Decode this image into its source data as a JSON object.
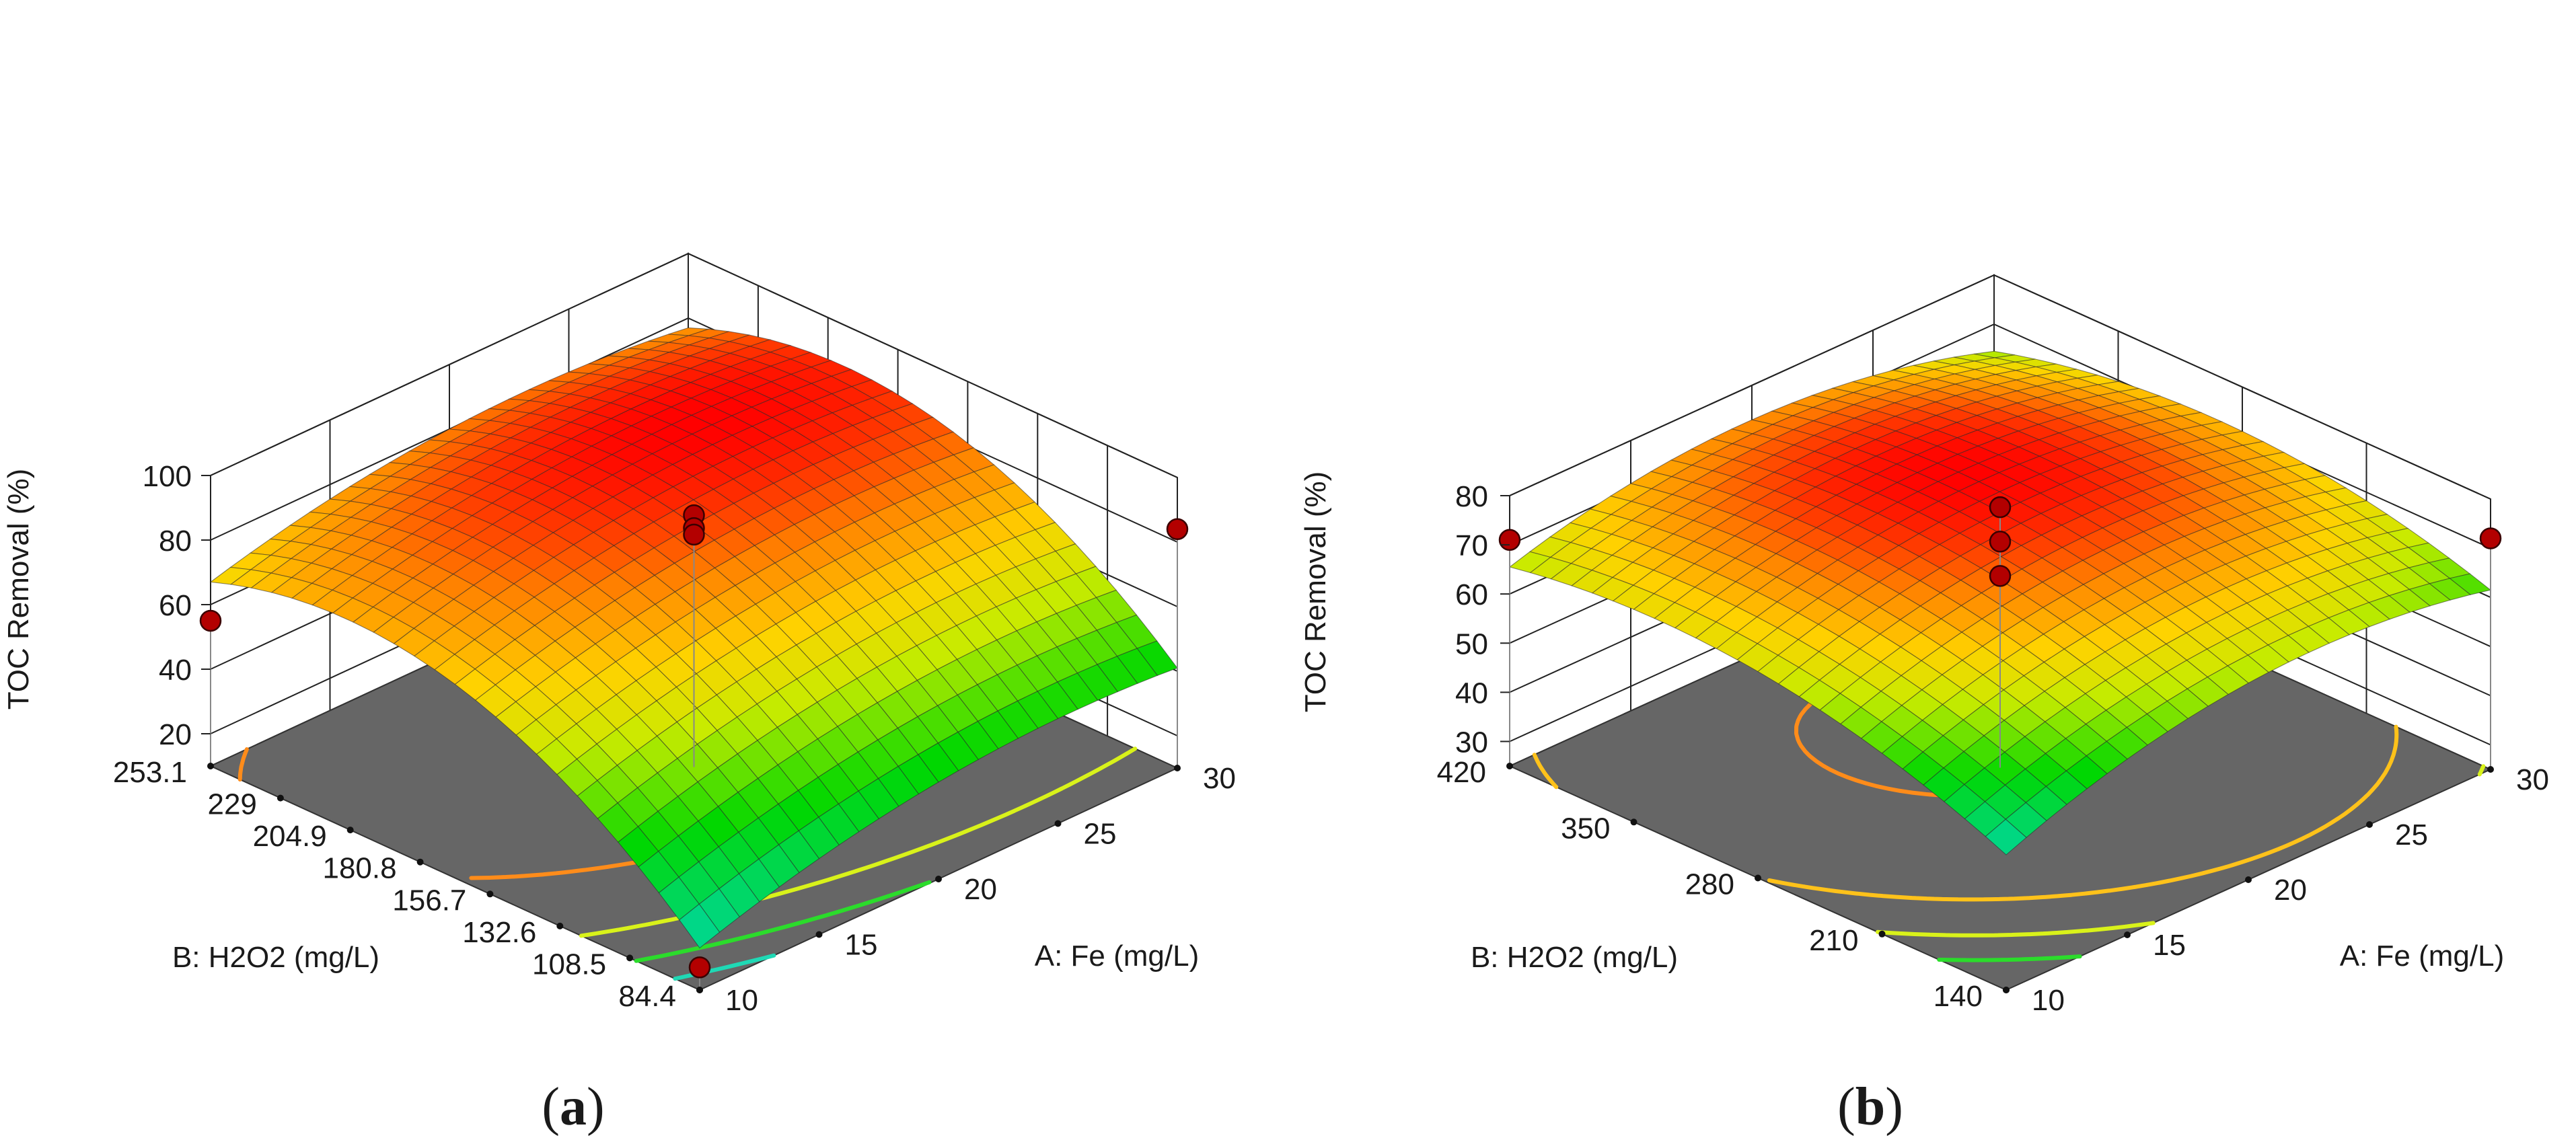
{
  "colors": {
    "floor": "#666666",
    "wall_line": "#222222",
    "point": "#b30000",
    "surface_low": "#00d7a8",
    "surface_mid": "#ffd200",
    "surface_high": "#ff0000",
    "contour_green": "#2bdc2b",
    "contour_yellow": "#d9f21a",
    "contour_orange": "#ff8c1a",
    "contour_gold": "#ffc21a",
    "contour_teal": "#1fd9b5"
  },
  "chart_data": [
    {
      "type": "surface",
      "caption_letter": "a",
      "title": "",
      "zlabel": "TOC Removal (%)",
      "xlabel": "A: Fe  (mg/L)",
      "ylabel": "B: H2O2  (mg/L)",
      "x_ticks": [
        "10",
        "15",
        "20",
        "25",
        "30"
      ],
      "x_tick_values": [
        10,
        15,
        20,
        25,
        30
      ],
      "y_ticks": [
        "84.4",
        "108.5",
        "132.6",
        "156.7",
        "180.8",
        "204.9",
        "229",
        "253.1"
      ],
      "y_tick_values": [
        84.4,
        108.5,
        132.6,
        156.7,
        180.8,
        204.9,
        229,
        253.1
      ],
      "z_ticks": [
        "20",
        "40",
        "60",
        "80",
        "100"
      ],
      "z_tick_values": [
        20,
        40,
        60,
        80,
        100
      ],
      "xlim": [
        10,
        30
      ],
      "ylim": [
        84.4,
        253.1
      ],
      "zlim": [
        10,
        100
      ],
      "grid_n": 24,
      "model": {
        "b0": 85,
        "bA": 7,
        "bB": 20,
        "bAB": -2,
        "bAA": -8,
        "bBB": -25
      },
      "contours": [
        {
          "level": 30,
          "color": "#1fd9b5"
        },
        {
          "level": 40,
          "color": "#2bdc2b"
        },
        {
          "level": 52,
          "color": "#d9f21a"
        },
        {
          "level": 70,
          "color": "#ff8c1a"
        }
      ],
      "design_points": [
        {
          "x": 10,
          "y": 84.4,
          "z": 17
        },
        {
          "x": 20,
          "y": 168.75,
          "z": 88
        },
        {
          "x": 20,
          "y": 168.75,
          "z": 84
        },
        {
          "x": 20,
          "y": 168.75,
          "z": 82
        },
        {
          "x": 10,
          "y": 253.1,
          "z": 55
        },
        {
          "x": 30,
          "y": 84.4,
          "z": 84
        }
      ]
    },
    {
      "type": "surface",
      "caption_letter": "b",
      "title": "",
      "zlabel": "TOC Removal (%)",
      "xlabel": "A: Fe (mg/L)",
      "ylabel": "B: H2O2 (mg/L)",
      "x_ticks": [
        "10",
        "15",
        "20",
        "25",
        "30"
      ],
      "x_tick_values": [
        10,
        15,
        20,
        25,
        30
      ],
      "y_ticks": [
        "140",
        "210",
        "280",
        "350",
        "420"
      ],
      "y_tick_values": [
        140,
        210,
        280,
        350,
        420
      ],
      "z_ticks": [
        "30",
        "40",
        "50",
        "60",
        "70",
        "80"
      ],
      "z_tick_values": [
        30,
        40,
        50,
        60,
        70,
        80
      ],
      "xlim": [
        10,
        30
      ],
      "ylim": [
        140,
        420
      ],
      "zlim": [
        25,
        80
      ],
      "grid_n": 24,
      "model": {
        "b0": 77,
        "bA": 2,
        "bB": 4,
        "bAB": -2.5,
        "bAA": -8,
        "bBB": -8
      },
      "contours": [
        {
          "level": 58,
          "color": "#2bdc2b"
        },
        {
          "level": 62,
          "color": "#d9f21a"
        },
        {
          "level": 67,
          "color": "#ffc21a"
        },
        {
          "level": 76,
          "color": "#ff8c1a"
        }
      ],
      "design_points": [
        {
          "x": 20,
          "y": 280,
          "z": 78
        },
        {
          "x": 20,
          "y": 280,
          "z": 71
        },
        {
          "x": 20,
          "y": 280,
          "z": 64
        },
        {
          "x": 10,
          "y": 420,
          "z": 71
        },
        {
          "x": 30,
          "y": 140,
          "z": 72
        }
      ]
    }
  ]
}
